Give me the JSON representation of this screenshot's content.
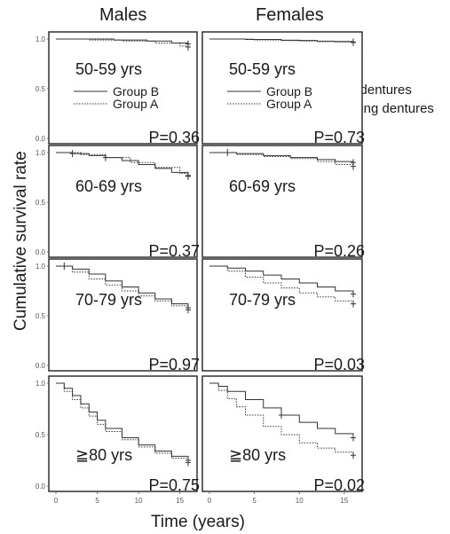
{
  "figure": {
    "column_titles": [
      "Males",
      "Females"
    ],
    "ylabel": "Cumulative survival rate",
    "xlabel": "Time (years)",
    "legend_extra": [
      "Using dentures",
      "Not using dentures"
    ]
  },
  "chart_data": [
    {
      "type": "line",
      "panel": "males-50-59",
      "age_label": "50-59 yrs",
      "p_value": "P=0.36",
      "xlim": [
        0,
        16
      ],
      "ylim": [
        0,
        1
      ],
      "yticks": [
        "0.0",
        "0.5",
        "1.0"
      ],
      "xticks": [],
      "legend": [
        {
          "name": "Group B",
          "style": "solid"
        },
        {
          "name": "Group A",
          "style": "dotted"
        }
      ],
      "series": [
        {
          "name": "Group B",
          "style": "solid",
          "x": [
            0,
            3,
            7,
            11,
            14,
            16
          ],
          "y": [
            1.0,
            1.0,
            0.99,
            0.98,
            0.96,
            0.95
          ],
          "censor_x": [
            16
          ]
        },
        {
          "name": "Group A",
          "style": "dotted",
          "x": [
            0,
            4,
            8,
            12,
            15,
            16
          ],
          "y": [
            1.0,
            0.99,
            0.98,
            0.96,
            0.93,
            0.92
          ],
          "censor_x": [
            16
          ]
        }
      ]
    },
    {
      "type": "line",
      "panel": "females-50-59",
      "age_label": "50-59 yrs",
      "p_value": "P=0.73",
      "xlim": [
        0,
        16
      ],
      "ylim": [
        0,
        1
      ],
      "yticks": [],
      "xticks": [],
      "legend": [
        {
          "name": "Group B",
          "style": "solid"
        },
        {
          "name": "Group A",
          "style": "dotted"
        }
      ],
      "series": [
        {
          "name": "Group B",
          "style": "solid",
          "x": [
            0,
            4,
            8,
            12,
            16
          ],
          "y": [
            1.0,
            0.995,
            0.985,
            0.975,
            0.97
          ],
          "censor_x": [
            16
          ]
        },
        {
          "name": "Group A",
          "style": "dotted",
          "x": [
            0,
            5,
            10,
            14,
            16
          ],
          "y": [
            1.0,
            0.99,
            0.98,
            0.97,
            0.965
          ],
          "censor_x": [
            16
          ]
        }
      ]
    },
    {
      "type": "line",
      "panel": "males-60-69",
      "age_label": "60-69 yrs",
      "p_value": "P=0.37",
      "xlim": [
        0,
        16
      ],
      "ylim": [
        0,
        1
      ],
      "yticks": [
        "0.0",
        "0.5",
        "1.0"
      ],
      "xticks": [],
      "legend": [],
      "series": [
        {
          "name": "Group B",
          "style": "solid",
          "x": [
            0,
            2,
            4,
            6,
            8,
            10,
            12,
            14,
            16
          ],
          "y": [
            1.0,
            0.99,
            0.97,
            0.95,
            0.92,
            0.88,
            0.84,
            0.8,
            0.77
          ],
          "censor_x": [
            2,
            6,
            16
          ]
        },
        {
          "name": "Group A",
          "style": "dotted",
          "x": [
            0,
            3,
            6,
            9,
            12,
            15,
            16
          ],
          "y": [
            1.0,
            0.98,
            0.95,
            0.9,
            0.85,
            0.79,
            0.76
          ],
          "censor_x": [
            16
          ]
        }
      ]
    },
    {
      "type": "line",
      "panel": "females-60-69",
      "age_label": "60-69 yrs",
      "p_value": "P=0.26",
      "xlim": [
        0,
        16
      ],
      "ylim": [
        0,
        1
      ],
      "yticks": [],
      "xticks": [],
      "legend": [],
      "series": [
        {
          "name": "Group B",
          "style": "solid",
          "x": [
            0,
            3,
            6,
            9,
            12,
            14,
            16
          ],
          "y": [
            1.0,
            0.99,
            0.97,
            0.95,
            0.93,
            0.91,
            0.9
          ],
          "censor_x": [
            2,
            16
          ]
        },
        {
          "name": "Group A",
          "style": "dotted",
          "x": [
            0,
            3,
            6,
            9,
            12,
            14,
            16
          ],
          "y": [
            1.0,
            0.98,
            0.96,
            0.94,
            0.91,
            0.88,
            0.86
          ],
          "censor_x": [
            16
          ]
        }
      ]
    },
    {
      "type": "line",
      "panel": "males-70-79",
      "age_label": "70-79 yrs",
      "p_value": "P=0.97",
      "xlim": [
        0,
        16
      ],
      "ylim": [
        0,
        1
      ],
      "yticks": [
        "0.0",
        "0.5",
        "1.0"
      ],
      "xticks": [],
      "legend": [],
      "series": [
        {
          "name": "Group B",
          "style": "solid",
          "x": [
            0,
            2,
            4,
            6,
            8,
            10,
            12,
            14,
            16
          ],
          "y": [
            1.0,
            0.97,
            0.92,
            0.85,
            0.79,
            0.73,
            0.67,
            0.62,
            0.58
          ],
          "censor_x": [
            1,
            16
          ]
        },
        {
          "name": "Group A",
          "style": "dotted",
          "x": [
            0,
            2,
            4,
            6,
            8,
            10,
            12,
            14,
            16
          ],
          "y": [
            1.0,
            0.94,
            0.87,
            0.81,
            0.75,
            0.7,
            0.65,
            0.6,
            0.56
          ],
          "censor_x": [
            16
          ]
        }
      ]
    },
    {
      "type": "line",
      "panel": "females-70-79",
      "age_label": "70-79 yrs",
      "p_value": "P=0.03",
      "xlim": [
        0,
        16
      ],
      "ylim": [
        0,
        1
      ],
      "yticks": [],
      "xticks": [],
      "legend": [],
      "series": [
        {
          "name": "Group B",
          "style": "solid",
          "x": [
            0,
            2,
            4,
            6,
            8,
            10,
            12,
            14,
            16
          ],
          "y": [
            1.0,
            0.98,
            0.95,
            0.91,
            0.87,
            0.83,
            0.79,
            0.75,
            0.72
          ],
          "censor_x": [
            16
          ]
        },
        {
          "name": "Group A",
          "style": "dotted",
          "x": [
            0,
            2,
            4,
            6,
            8,
            10,
            12,
            14,
            16
          ],
          "y": [
            1.0,
            0.95,
            0.89,
            0.83,
            0.78,
            0.73,
            0.69,
            0.65,
            0.62
          ],
          "censor_x": [
            16
          ]
        }
      ]
    },
    {
      "type": "line",
      "panel": "males-80plus",
      "age_label": "≧80 yrs",
      "p_value": "P=0.75",
      "xlim": [
        0,
        16
      ],
      "ylim": [
        0,
        1
      ],
      "yticks": [
        "0.0",
        "0.5",
        "1.0"
      ],
      "xticks": [
        "0",
        "5",
        "10",
        "15"
      ],
      "legend": [],
      "series": [
        {
          "name": "Group B",
          "style": "solid",
          "x": [
            0,
            1,
            2,
            3,
            4,
            5,
            6,
            8,
            10,
            12,
            14,
            16
          ],
          "y": [
            1.0,
            0.95,
            0.88,
            0.8,
            0.72,
            0.64,
            0.56,
            0.47,
            0.4,
            0.34,
            0.29,
            0.25
          ],
          "censor_x": [
            16
          ]
        },
        {
          "name": "Group A",
          "style": "dotted",
          "x": [
            0,
            1,
            2,
            3,
            4,
            5,
            6,
            8,
            10,
            12,
            14,
            16
          ],
          "y": [
            1.0,
            0.92,
            0.84,
            0.76,
            0.68,
            0.6,
            0.53,
            0.45,
            0.38,
            0.32,
            0.27,
            0.23
          ],
          "censor_x": [
            16
          ]
        }
      ]
    },
    {
      "type": "line",
      "panel": "females-80plus",
      "age_label": "≧80 yrs",
      "p_value": "P=0.02",
      "xlim": [
        0,
        16
      ],
      "ylim": [
        0,
        1
      ],
      "yticks": [],
      "xticks": [
        "0",
        "5",
        "10",
        "15"
      ],
      "legend": [],
      "series": [
        {
          "name": "Group B",
          "style": "solid",
          "x": [
            0,
            1,
            2,
            4,
            6,
            8,
            10,
            12,
            14,
            16
          ],
          "y": [
            1.0,
            0.97,
            0.92,
            0.84,
            0.76,
            0.69,
            0.62,
            0.56,
            0.51,
            0.47
          ],
          "censor_x": [
            8,
            16
          ]
        },
        {
          "name": "Group A",
          "style": "dotted",
          "x": [
            0,
            1,
            2,
            3,
            4,
            6,
            8,
            10,
            12,
            14,
            16
          ],
          "y": [
            1.0,
            0.93,
            0.85,
            0.77,
            0.69,
            0.58,
            0.5,
            0.42,
            0.37,
            0.33,
            0.3
          ],
          "censor_x": [
            16
          ]
        }
      ]
    }
  ]
}
